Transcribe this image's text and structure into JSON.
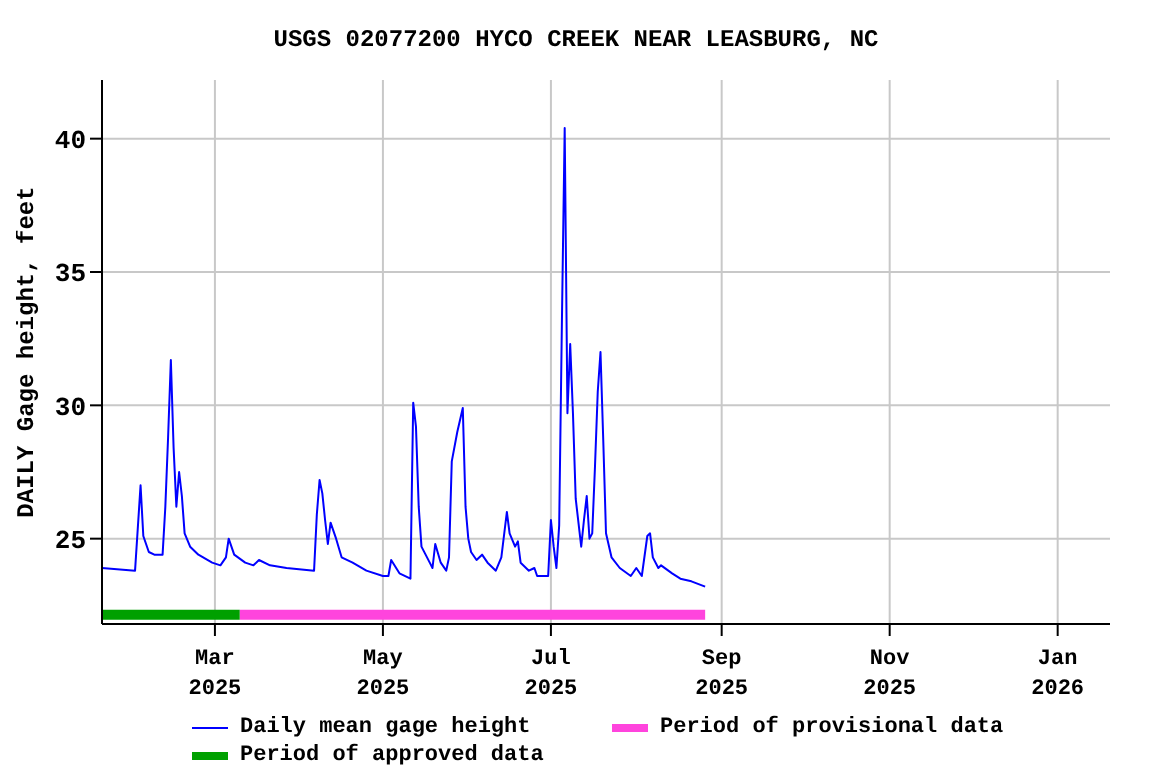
{
  "chart_data": {
    "type": "line",
    "title": "USGS 02077200 HYCO CREEK NEAR LEASBURG, NC",
    "ylabel": "DAILY Gage height, feet",
    "x": [
      "2025-01-19",
      "2025-01-31",
      "2025-02-02",
      "2025-02-03",
      "2025-02-05",
      "2025-02-07",
      "2025-02-10",
      "2025-02-11",
      "2025-02-12",
      "2025-02-13",
      "2025-02-14",
      "2025-02-15",
      "2025-02-16",
      "2025-02-17",
      "2025-02-18",
      "2025-02-20",
      "2025-02-23",
      "2025-02-28",
      "2025-03-03",
      "2025-03-05",
      "2025-03-06",
      "2025-03-08",
      "2025-03-12",
      "2025-03-15",
      "2025-03-17",
      "2025-03-21",
      "2025-03-27",
      "2025-04-06",
      "2025-04-07",
      "2025-04-08",
      "2025-04-09",
      "2025-04-10",
      "2025-04-11",
      "2025-04-12",
      "2025-04-14",
      "2025-04-16",
      "2025-04-20",
      "2025-04-25",
      "2025-05-01",
      "2025-05-03",
      "2025-05-04",
      "2025-05-07",
      "2025-05-11",
      "2025-05-12",
      "2025-05-13",
      "2025-05-14",
      "2025-05-15",
      "2025-05-18",
      "2025-05-19",
      "2025-05-20",
      "2025-05-22",
      "2025-05-24",
      "2025-05-25",
      "2025-05-26",
      "2025-05-28",
      "2025-05-30",
      "2025-05-31",
      "2025-06-01",
      "2025-06-02",
      "2025-06-04",
      "2025-06-06",
      "2025-06-08",
      "2025-06-11",
      "2025-06-13",
      "2025-06-15",
      "2025-06-16",
      "2025-06-18",
      "2025-06-19",
      "2025-06-20",
      "2025-06-23",
      "2025-06-25",
      "2025-06-26",
      "2025-06-30",
      "2025-07-01",
      "2025-07-02",
      "2025-07-03",
      "2025-07-04",
      "2025-07-05",
      "2025-07-06",
      "2025-07-07",
      "2025-07-08",
      "2025-07-09",
      "2025-07-10",
      "2025-07-12",
      "2025-07-13",
      "2025-07-14",
      "2025-07-15",
      "2025-07-16",
      "2025-07-17",
      "2025-07-18",
      "2025-07-19",
      "2025-07-20",
      "2025-07-21",
      "2025-07-23",
      "2025-07-26",
      "2025-07-30",
      "2025-08-01",
      "2025-08-03",
      "2025-08-05",
      "2025-08-06",
      "2025-08-07",
      "2025-08-09",
      "2025-08-10",
      "2025-08-14",
      "2025-08-17",
      "2025-08-21",
      "2025-08-26"
    ],
    "series": [
      {
        "name": "Daily mean gage height",
        "color": "#0000ff",
        "values": [
          23.9,
          23.8,
          27.0,
          25.1,
          24.5,
          24.4,
          24.4,
          26.2,
          28.8,
          31.7,
          28.4,
          26.2,
          27.5,
          26.6,
          25.2,
          24.7,
          24.4,
          24.1,
          24.0,
          24.3,
          25.0,
          24.4,
          24.1,
          24.0,
          24.2,
          24.0,
          23.9,
          23.8,
          25.9,
          27.2,
          26.7,
          25.7,
          24.8,
          25.6,
          25.0,
          24.3,
          24.1,
          23.8,
          23.6,
          23.6,
          24.2,
          23.7,
          23.5,
          30.1,
          29.2,
          26.2,
          24.7,
          24.1,
          23.9,
          24.8,
          24.1,
          23.8,
          24.3,
          27.9,
          29.0,
          29.9,
          26.2,
          25.0,
          24.5,
          24.2,
          24.4,
          24.1,
          23.8,
          24.3,
          26.0,
          25.2,
          24.7,
          24.9,
          24.1,
          23.8,
          23.9,
          23.6,
          23.6,
          25.7,
          24.7,
          23.9,
          25.5,
          33.2,
          40.4,
          29.7,
          32.3,
          29.7,
          26.5,
          24.7,
          25.7,
          26.6,
          25.0,
          25.2,
          27.7,
          30.5,
          32.0,
          28.7,
          25.2,
          24.3,
          23.9,
          23.6,
          23.9,
          23.6,
          25.1,
          25.2,
          24.3,
          23.9,
          24.0,
          23.7,
          23.5,
          23.4,
          23.2
        ]
      },
      {
        "name": "Period of provisional data",
        "color": "#ff44dd",
        "x": [
          "2025-03-10",
          "2025-08-26"
        ],
        "values": [
          22.15,
          22.15
        ]
      },
      {
        "name": "Period of approved data",
        "color": "#00a000",
        "x": [
          "2025-01-19",
          "2025-03-10"
        ],
        "values": [
          22.15,
          22.15
        ]
      }
    ],
    "xlim": [
      "2025-01-19",
      "2026-01-20"
    ],
    "xticks": [
      {
        "value": "2025-03-01",
        "label": "Mar 2025"
      },
      {
        "value": "2025-05-01",
        "label": "May 2025"
      },
      {
        "value": "2025-07-01",
        "label": "Jul 2025"
      },
      {
        "value": "2025-09-01",
        "label": "Sep 2025"
      },
      {
        "value": "2025-11-01",
        "label": "Nov 2025"
      },
      {
        "value": "2026-01-01",
        "label": "Jan 2026"
      }
    ],
    "ylim": [
      21.8,
      42.2
    ],
    "yticks": [
      25,
      30,
      35,
      40
    ],
    "grid": true,
    "legend": "bottom",
    "marker": "none",
    "line_style": "solid"
  }
}
